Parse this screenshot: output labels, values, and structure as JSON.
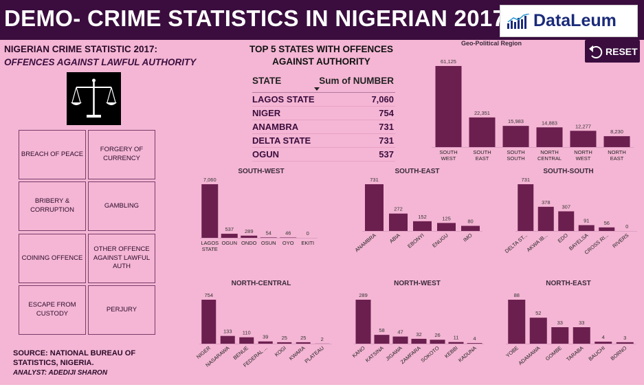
{
  "header": {
    "title": "DEMO- CRIME STATISTICS IN NIGERIAN 2017",
    "logo_text": "DataLeum"
  },
  "left": {
    "subtitle": "NIGERIAN CRIME STATISTIC 2017:",
    "subtitle_italic": "OFFENCES AGAINST LAWFUL AUTHORITY",
    "categories": [
      "BREACH OF PEACE",
      "FORGERY OF CURRENCY",
      "BRIBERY & CORRUPTION",
      "GAMBLING",
      "COINING OFFENCE",
      "OTHER OFFENCE AGAINST LAWFUL AUTH",
      "ESCAPE FROM CUSTODY",
      "PERJURY"
    ],
    "source": "SOURCE: NATIONAL BUREAU OF STATISTICS, NIGERIA.",
    "analyst": "ANALYST: ADEDIJI SHARON"
  },
  "top5": {
    "title": "TOP 5 STATES WITH OFFENCES AGAINST AUTHORITY",
    "col_state": "STATE",
    "col_value": "Sum of NUMBER",
    "rows": [
      {
        "state": "LAGOS STATE",
        "value": "7,060"
      },
      {
        "state": "NIGER",
        "value": "754"
      },
      {
        "state": "ANAMBRA",
        "value": "731"
      },
      {
        "state": "DELTA STATE",
        "value": "731"
      },
      {
        "state": "OGUN",
        "value": "537"
      }
    ]
  },
  "reset_label": "RESET",
  "colors": {
    "bar": "#6b1f4f",
    "header": "#3a0d3e",
    "background": "#f4b6d4"
  },
  "chart_data": [
    {
      "id": "geo",
      "type": "bar",
      "title": "Geo-Political Region",
      "categories": [
        "SOUTH WEST",
        "SOUTH EAST",
        "SOUTH SOUTH",
        "NORTH CENTRAL",
        "NORTH WEST",
        "NORTH EAST"
      ],
      "values": [
        61125,
        22351,
        15983,
        14883,
        12277,
        8230
      ],
      "labels": [
        "61,125",
        "22,351",
        "15,983",
        "14,883",
        "12,277",
        "8,230"
      ]
    },
    {
      "id": "sw",
      "type": "bar",
      "title": "SOUTH-WEST",
      "categories": [
        "LAGOS STATE",
        "OGUN",
        "ONDO",
        "OSUN",
        "OYO",
        "EKITI"
      ],
      "values": [
        7060,
        537,
        289,
        54,
        46,
        0
      ],
      "labels": [
        "7,060",
        "537",
        "289",
        "54",
        "46",
        "0"
      ]
    },
    {
      "id": "se",
      "type": "bar",
      "title": "SOUTH-EAST",
      "categories": [
        "ANAMBRA",
        "ABIA",
        "EBONYI",
        "ENUGU",
        "IMO"
      ],
      "values": [
        731,
        272,
        152,
        125,
        80
      ],
      "labels": [
        "731",
        "272",
        "152",
        "125",
        "80"
      ]
    },
    {
      "id": "ss",
      "type": "bar",
      "title": "SOUTH-SOUTH",
      "categories": [
        "DELTA ST...",
        "AKWA IB...",
        "EDO",
        "BAYELSA",
        "CROSS RI...",
        "RIVERS"
      ],
      "values": [
        731,
        378,
        307,
        91,
        56,
        0
      ],
      "labels": [
        "731",
        "378",
        "307",
        "91",
        "56",
        "0"
      ]
    },
    {
      "id": "nc",
      "type": "bar",
      "title": "NORTH-CENTRAL",
      "categories": [
        "NIGER",
        "NASARAWA",
        "BENUE",
        "FEDERAL ...",
        "KOGI",
        "KWARA",
        "PLATEAU"
      ],
      "values": [
        754,
        133,
        110,
        39,
        25,
        25,
        2
      ],
      "labels": [
        "754",
        "133",
        "110",
        "39",
        "25",
        "25",
        "2"
      ]
    },
    {
      "id": "nw",
      "type": "bar",
      "title": "NORTH-WEST",
      "categories": [
        "KANO",
        "KATSINA",
        "JIGAWA",
        "ZAMFARA",
        "SOKOTO",
        "KEBBI",
        "KADUNA"
      ],
      "values": [
        289,
        58,
        47,
        32,
        26,
        11,
        4
      ],
      "labels": [
        "289",
        "58",
        "47",
        "32",
        "26",
        "11",
        "4"
      ]
    },
    {
      "id": "ne",
      "type": "bar",
      "title": "NORTH-EAST",
      "categories": [
        "YOBE",
        "ADAMAWA",
        "GOMBE",
        "TARABA",
        "BAUCHI",
        "BORNO"
      ],
      "values": [
        88,
        52,
        33,
        33,
        4,
        3
      ],
      "labels": [
        "88",
        "52",
        "33",
        "33",
        "4",
        "3"
      ]
    }
  ]
}
